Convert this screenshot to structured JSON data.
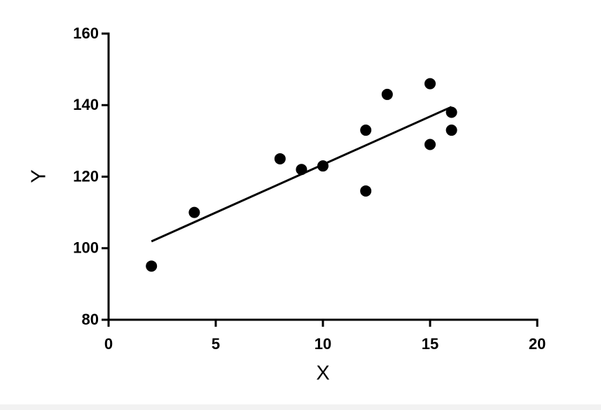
{
  "chart_data": {
    "type": "scatter",
    "xlabel": "X",
    "ylabel": "Y",
    "series": [
      {
        "color": "#000000",
        "x": [
          2,
          4,
          8,
          9,
          10,
          12,
          12,
          13,
          15,
          15,
          16,
          16
        ],
        "values": [
          95,
          110,
          125,
          122,
          123,
          133,
          116,
          143,
          146,
          129,
          138,
          133
        ]
      }
    ],
    "fit": {
      "color": "#000000",
      "x": [
        2,
        16
      ],
      "values": [
        101.9,
        139.5
      ]
    },
    "xlim": [
      0,
      20
    ],
    "xticks": [
      0,
      5,
      10,
      15,
      20
    ],
    "ylim": [
      80,
      160
    ],
    "yticks": [
      80,
      100,
      120,
      140,
      160
    ],
    "grid": false
  }
}
